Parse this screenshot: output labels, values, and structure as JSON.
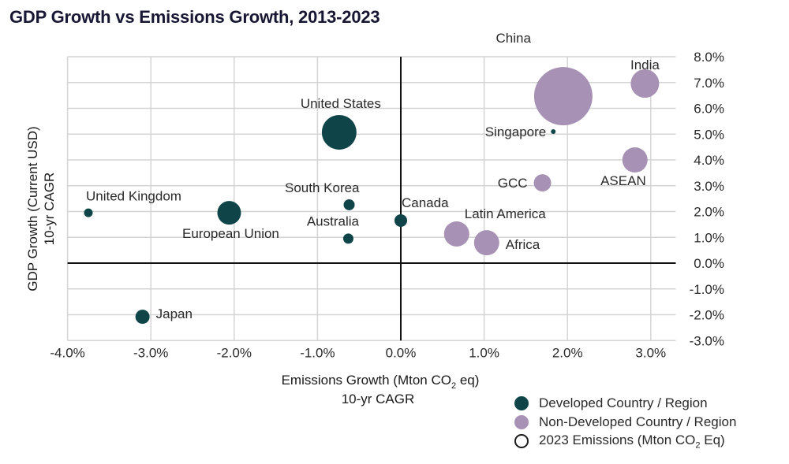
{
  "chart_data": {
    "type": "scatter",
    "subtype": "bubble",
    "title": "GDP Growth vs Emissions Growth, 2013-2023",
    "xlabel": "Emissions Growth (Mton CO2 eq)",
    "xlabel_sub": "10-yr CAGR",
    "ylabel": "GDP Growth (Current USD)",
    "ylabel_sub": "10-yr CAGR",
    "xlim": [
      -4.0,
      3.3
    ],
    "ylim": [
      -3.0,
      8.0
    ],
    "x_ticks": [
      -4.0,
      -3.0,
      -2.0,
      -1.0,
      0.0,
      1.0,
      2.0,
      3.0
    ],
    "x_tick_labels": [
      "-4.0%",
      "-3.0%",
      "-2.0%",
      "-1.0%",
      "0.0%",
      "1.0%",
      "2.0%",
      "3.0%"
    ],
    "y_ticks": [
      8.0,
      7.0,
      6.0,
      5.0,
      4.0,
      3.0,
      2.0,
      1.0,
      0.0,
      -1.0,
      -2.0,
      -3.0
    ],
    "y_tick_labels": [
      "8.0%",
      "7.0%",
      "6.0%",
      "5.0%",
      "4.0%",
      "3.0%",
      "2.0%",
      "1.0%",
      "0.0%",
      "-1.0%",
      "-2.0%",
      "-3.0%"
    ],
    "y_axis_side": "right",
    "grid": true,
    "legend_position": "bottom-right",
    "size_encodes": "2023 Emissions (Mton CO2 Eq)",
    "series": [
      {
        "name": "Developed Country / Region",
        "color": "#0f4549",
        "points": [
          {
            "label": "United States",
            "x": -0.74,
            "y": 5.07,
            "size_rel": 22,
            "label_pos": "above"
          },
          {
            "label": "United Kingdom",
            "x": -3.75,
            "y": 1.95,
            "size_rel": 5.5,
            "label_pos": "above-right"
          },
          {
            "label": "European Union",
            "x": -2.06,
            "y": 1.95,
            "size_rel": 15,
            "label_pos": "below"
          },
          {
            "label": "South Korea",
            "x": -0.62,
            "y": 2.26,
            "size_rel": 7,
            "label_pos": "above-left"
          },
          {
            "label": "Australia",
            "x": -0.63,
            "y": 0.95,
            "size_rel": 6.5,
            "label_pos": "above-left"
          },
          {
            "label": "Canada",
            "x": 0.0,
            "y": 1.65,
            "size_rel": 8,
            "label_pos": "above-right"
          },
          {
            "label": "Japan",
            "x": -3.1,
            "y": -2.08,
            "size_rel": 9,
            "label_pos": "right"
          },
          {
            "label": "Singapore",
            "x": 1.83,
            "y": 5.1,
            "size_rel": 3,
            "label_pos": "left"
          }
        ]
      },
      {
        "name": "Non-Developed Country / Region",
        "color": "#a792b5",
        "points": [
          {
            "label": "China",
            "x": 1.95,
            "y": 6.47,
            "size_rel": 37,
            "label_pos": "above-left"
          },
          {
            "label": "India",
            "x": 2.93,
            "y": 6.96,
            "size_rel": 18,
            "label_pos": "above"
          },
          {
            "label": "ASEAN",
            "x": 2.81,
            "y": 4.0,
            "size_rel": 16,
            "label_pos": "below-left"
          },
          {
            "label": "GCC",
            "x": 1.7,
            "y": 3.11,
            "size_rel": 11,
            "label_pos": "left"
          },
          {
            "label": "Latin America",
            "x": 0.67,
            "y": 1.13,
            "size_rel": 16,
            "label_pos": "above-right"
          },
          {
            "label": "Africa",
            "x": 1.03,
            "y": 0.79,
            "size_rel": 16,
            "label_pos": "right"
          }
        ]
      }
    ]
  },
  "legend": {
    "items": [
      {
        "label": "Developed Country / Region",
        "kind": "filled",
        "color": "#0f4549"
      },
      {
        "label": "Non-Developed Country / Region",
        "kind": "filled",
        "color": "#a792b5"
      },
      {
        "label": "2023 Emissions (Mton CO",
        "label_sub": "2",
        "label_tail": " Eq)",
        "kind": "outline",
        "color": "#1a1a1a"
      }
    ]
  },
  "axis_text": {
    "x_main_pre": "Emissions Growth (Mton CO",
    "x_main_sub": "2",
    "x_main_post": " eq)",
    "x_sub": "10-yr CAGR",
    "y_main": "GDP Growth (Current USD)",
    "y_sub": "10-yr CAGR"
  },
  "colors": {
    "grid": "#d4d4d4",
    "zero_axis": "#111111",
    "title": "#171733"
  }
}
